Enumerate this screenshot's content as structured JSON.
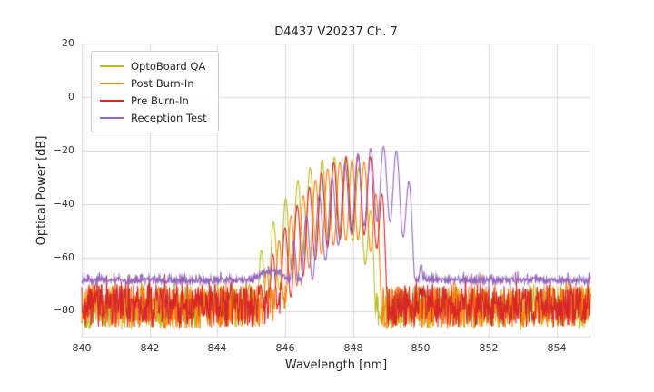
{
  "chart_data": {
    "type": "line",
    "title": "D4437 V20237 Ch. 7",
    "xlabel": "Wavelength [nm]",
    "ylabel": "Optical Power [dB]",
    "xlim": [
      840,
      855
    ],
    "ylim": [
      -90,
      20
    ],
    "xticks": [
      840,
      842,
      844,
      846,
      848,
      850,
      852,
      854
    ],
    "xtick_labels": [
      "840",
      "842",
      "844",
      "846",
      "848",
      "850",
      "852",
      "854"
    ],
    "yticks": [
      20,
      0,
      -20,
      -40,
      -60,
      -80
    ],
    "ytick_labels": [
      "20",
      "0",
      "−20",
      "−40",
      "−60",
      "−80"
    ],
    "grid": true,
    "grid_color": "#d9d9d9",
    "background": "#ffffff",
    "legend_position": "upper left",
    "series": [
      {
        "name": "OptoBoard QA",
        "color": "#bcbd22",
        "seed": 101,
        "noise": {
          "floor": -79,
          "amp": 8,
          "spike_prob": 0.1,
          "spike_amp": 5
        },
        "envelope": {
          "center": 847.45,
          "peak_db": -22.5,
          "left_a": 7.5,
          "left_pow": 2,
          "right_a": 15,
          "right_pow": 4,
          "mode_spacing": 0.36,
          "mod_depth": 30
        },
        "main_peaks_nm_db": [
          [
            845.6,
            -47
          ],
          [
            846.0,
            -38
          ],
          [
            846.4,
            -31
          ],
          [
            846.7,
            -26.5
          ],
          [
            847.1,
            -23.5
          ],
          [
            847.4,
            -22.5
          ],
          [
            847.8,
            -22.8
          ],
          [
            848.2,
            -26.5
          ],
          [
            848.5,
            -33
          ]
        ]
      },
      {
        "name": "Post Burn-In",
        "color": "#ff7f0e",
        "seed": 202,
        "noise": {
          "floor": -78.5,
          "amp": 8,
          "spike_prob": 0.1,
          "spike_amp": 5
        },
        "envelope": {
          "center": 847.97,
          "peak_db": -23.5,
          "left_a": 6.5,
          "left_pow": 2,
          "right_a": 50,
          "right_pow": 4,
          "mode_spacing": 0.36,
          "mod_depth": 30
        },
        "main_peaks_nm_db": [
          [
            846.2,
            -44.5
          ],
          [
            846.5,
            -37
          ],
          [
            846.9,
            -31
          ],
          [
            847.3,
            -27
          ],
          [
            847.6,
            -24.5
          ],
          [
            848.0,
            -23.5
          ],
          [
            848.3,
            -24.5
          ],
          [
            848.7,
            -37
          ]
        ]
      },
      {
        "name": "Pre Burn-In",
        "color": "#d62728",
        "seed": 303,
        "noise": {
          "floor": -78,
          "amp": 8,
          "spike_prob": 0.1,
          "spike_amp": 5
        },
        "envelope": {
          "center": 848.15,
          "peak_db": -21.5,
          "left_a": 5.9,
          "left_pow": 2,
          "right_a": 58,
          "right_pow": 4,
          "mode_spacing": 0.36,
          "mod_depth": 30
        },
        "main_peaks_nm_db": [
          [
            846.0,
            -49
          ],
          [
            846.4,
            -40.5
          ],
          [
            846.7,
            -33.5
          ],
          [
            847.1,
            -28.5
          ],
          [
            847.4,
            -24.5
          ],
          [
            847.8,
            -22.5
          ],
          [
            848.2,
            -21.5
          ],
          [
            848.5,
            -22.5
          ],
          [
            848.9,
            -37
          ]
        ]
      },
      {
        "name": "Reception Test",
        "color": "#9467bd",
        "seed": 404,
        "noise": {
          "floor": -68.7,
          "amp": 1.1,
          "spike_prob": 0.15,
          "spike_amp": 2.5,
          "bumps": [
            {
              "center": 845.55,
              "height": 3.5,
              "width": 0.28
            }
          ]
        },
        "envelope": {
          "center": 848.9,
          "peak_db": -18.5,
          "left_a": 5.0,
          "left_pow": 2,
          "right_a": 31,
          "right_pow": 3,
          "mode_spacing": 0.38,
          "mod_depth": 28
        },
        "main_peaks_nm_db": [
          [
            846.6,
            -44.5
          ],
          [
            847.0,
            -37
          ],
          [
            847.4,
            -30
          ],
          [
            847.8,
            -25
          ],
          [
            848.1,
            -21.5
          ],
          [
            848.5,
            -19.2
          ],
          [
            848.9,
            -18.5
          ],
          [
            849.3,
            -20
          ],
          [
            849.7,
            -32
          ]
        ]
      }
    ]
  }
}
